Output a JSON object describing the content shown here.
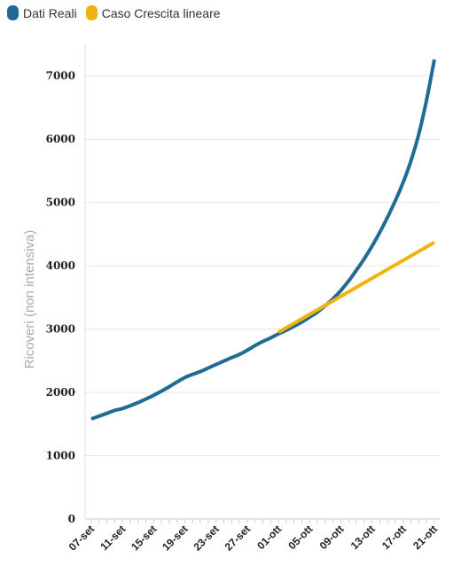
{
  "legend": {
    "items": [
      {
        "label": "Dati Reali",
        "color": "#1f6b94"
      },
      {
        "label": "Caso Crescita lineare",
        "color": "#f0b20f"
      }
    ]
  },
  "chart_data": {
    "type": "line",
    "title": "",
    "xlabel": "",
    "ylabel": "Ricoveri (non intensiva)",
    "ylim": [
      0,
      7500
    ],
    "yticks": [
      0,
      1000,
      2000,
      3000,
      4000,
      5000,
      6000,
      7000
    ],
    "x_tick_labels": [
      "07-set",
      "11-set",
      "15-set",
      "19-set",
      "23-set",
      "27-set",
      "01-ott",
      "05-ott",
      "09-ott",
      "13-ott",
      "17-ott",
      "21-ott"
    ],
    "x_day_start": "07-set",
    "x_day_end": "21-ott",
    "grid": "horizontal",
    "legend_position": "top-left",
    "series": [
      {
        "name": "Dati Reali",
        "color": "#1f6b94",
        "dates": [
          "07-set",
          "08-set",
          "09-set",
          "10-set",
          "11-set",
          "12-set",
          "13-set",
          "14-set",
          "15-set",
          "16-set",
          "17-set",
          "18-set",
          "19-set",
          "20-set",
          "21-set",
          "22-set",
          "23-set",
          "24-set",
          "25-set",
          "26-set",
          "27-set",
          "28-set",
          "29-set",
          "30-set",
          "01-ott",
          "02-ott",
          "03-ott",
          "04-ott",
          "05-ott",
          "06-ott",
          "07-ott",
          "08-ott",
          "09-ott",
          "10-ott",
          "11-ott",
          "12-ott",
          "13-ott",
          "14-ott",
          "15-ott",
          "16-ott",
          "17-ott",
          "18-ott",
          "19-ott",
          "20-ott",
          "21-ott"
        ],
        "values": [
          1580,
          1625,
          1670,
          1715,
          1745,
          1790,
          1840,
          1895,
          1955,
          2020,
          2090,
          2165,
          2235,
          2285,
          2330,
          2385,
          2440,
          2495,
          2550,
          2600,
          2665,
          2740,
          2805,
          2860,
          2925,
          2980,
          3045,
          3110,
          3190,
          3270,
          3370,
          3480,
          3610,
          3760,
          3930,
          4110,
          4310,
          4530,
          4770,
          5030,
          5320,
          5660,
          6080,
          6620,
          7260
        ]
      },
      {
        "name": "Caso Crescita lineare",
        "color": "#f0b20f",
        "dates": [
          "01-ott",
          "21-ott"
        ],
        "values": [
          2950,
          4370
        ]
      }
    ]
  }
}
